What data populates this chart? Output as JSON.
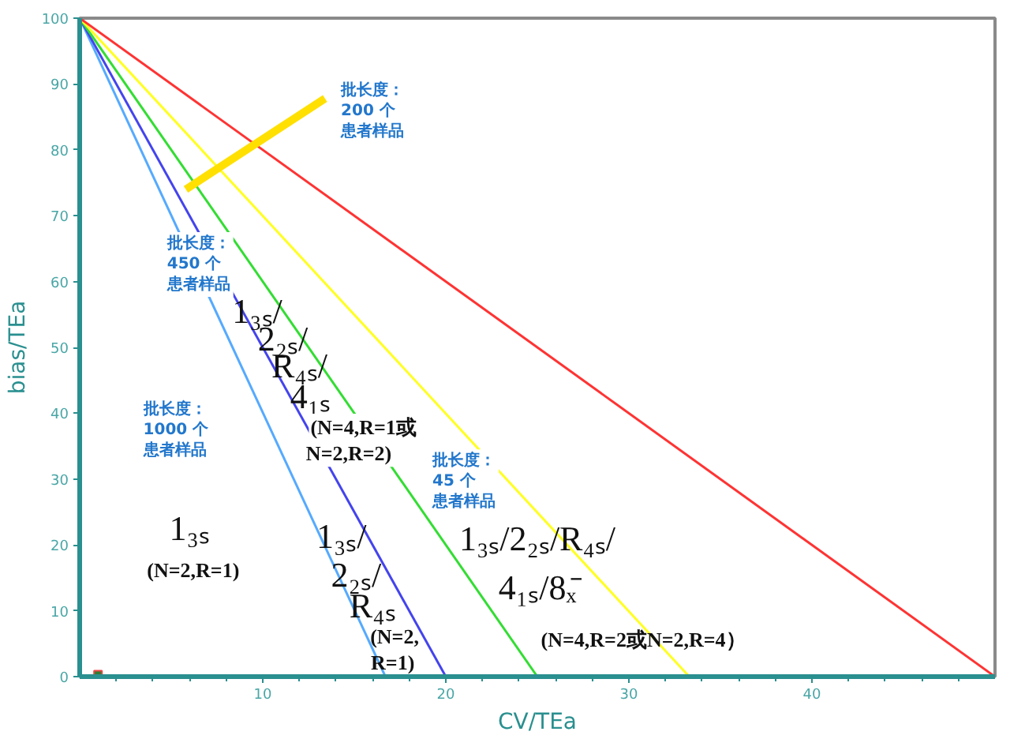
{
  "chart_data": {
    "type": "line",
    "xlabel": "CV/TEa",
    "ylabel": "bias/TEa",
    "xlim": [
      0,
      50
    ],
    "ylim": [
      0,
      100
    ],
    "xticks": [
      {
        "value": 2,
        "label": null
      },
      {
        "value": 4,
        "label": null
      },
      {
        "value": 6,
        "label": null
      },
      {
        "value": 8,
        "label": null
      },
      10,
      {
        "value": 12,
        "label": null
      },
      {
        "value": 14,
        "label": null
      },
      {
        "value": 16,
        "label": null
      },
      {
        "value": 18,
        "label": null
      },
      20,
      {
        "value": 22,
        "label": null
      },
      {
        "value": 24,
        "label": null
      },
      {
        "value": 26,
        "label": null
      },
      {
        "value": 28,
        "label": null
      },
      30,
      {
        "value": 32,
        "label": null
      },
      {
        "value": 34,
        "label": null
      },
      {
        "value": 36,
        "label": null
      },
      {
        "value": 38,
        "label": null
      },
      40,
      {
        "value": 42,
        "label": null
      },
      {
        "value": 44,
        "label": null
      },
      {
        "value": 46,
        "label": null
      },
      {
        "value": 48,
        "label": null
      }
    ],
    "yticks": [
      0,
      10,
      20,
      30,
      40,
      50,
      60,
      70,
      80,
      90,
      100
    ],
    "grid": false,
    "marker": "none",
    "line_style": "solid",
    "series": [
      {
        "color": "#55aaff",
        "x": [
          0,
          16.7
        ],
        "values": [
          100,
          0
        ]
      },
      {
        "color": "#4444ee",
        "x": [
          0,
          20
        ],
        "values": [
          100,
          0
        ]
      },
      {
        "color": "#33dd33",
        "x": [
          0,
          25
        ],
        "values": [
          100,
          0
        ]
      },
      {
        "color": "#ffff22",
        "x": [
          0,
          33.3
        ],
        "values": [
          100,
          0
        ]
      },
      {
        "color": "#ff3333",
        "x": [
          0,
          50
        ],
        "values": [
          100,
          0
        ]
      },
      {
        "type": "scatter",
        "color": "#2e7d32",
        "marker": "square",
        "x": [
          1
        ],
        "values": [
          0.3
        ]
      }
    ],
    "annotations": [
      "批长度：200 个患者样品",
      "批长度：450 个患者样品",
      "批长度：1000 个患者样品",
      "批长度：45 个患者样品",
      "1₃ₛ",
      "(N=2,R=1)",
      "1₃ₛ/",
      "2₂ₛ/",
      "R₄ₛ",
      "(N=2,",
      "R=1)",
      "1₃ₛ/",
      "2₂ₛ/",
      "R₄ₛ/",
      "4₁ₛ",
      "(N=4,R=1或",
      "N=2,R=2)",
      "1₃ₛ/2₂ₛ/R₄ₛ/",
      "4₁ₛ/8ₓ̄",
      "(N=4,R=2或N=2,R=4）"
    ]
  }
}
